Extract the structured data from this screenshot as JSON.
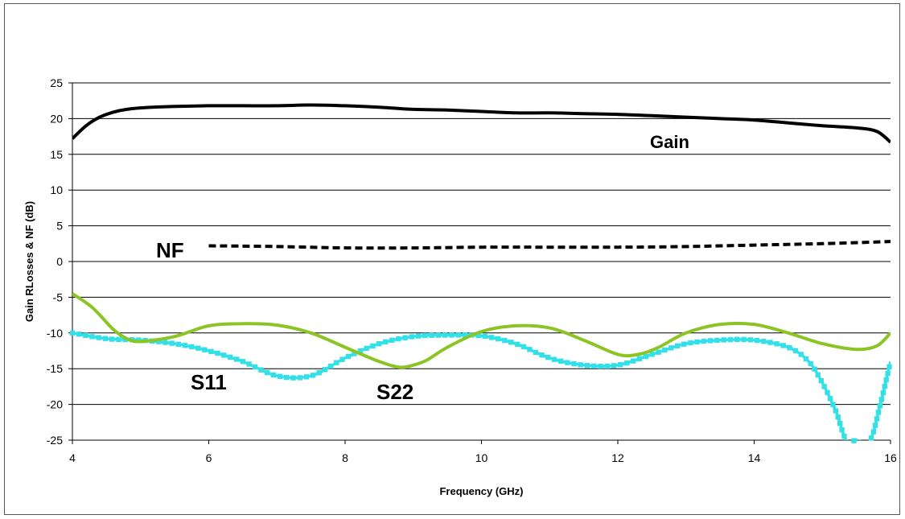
{
  "chart_data": {
    "type": "line",
    "xlabel": "Frequency (GHz)",
    "ylabel": "Gain RLosses & NF (dB)",
    "xlim": [
      4,
      16
    ],
    "ylim": [
      -25,
      25
    ],
    "xticks": [
      4,
      6,
      8,
      10,
      12,
      14,
      16
    ],
    "yticks": [
      25,
      20,
      15,
      10,
      5,
      0,
      -5,
      -10,
      -15,
      -20,
      -25
    ],
    "grid": "horizontal",
    "series": [
      {
        "name": "Gain",
        "color": "#000000",
        "style": "solid",
        "x": [
          4.0,
          4.2,
          4.4,
          4.6,
          4.8,
          5.0,
          5.5,
          6.0,
          6.5,
          7.0,
          7.5,
          8.0,
          8.5,
          9.0,
          9.5,
          10.0,
          10.5,
          11.0,
          11.5,
          12.0,
          12.5,
          13.0,
          13.5,
          14.0,
          14.5,
          15.0,
          15.5,
          15.8,
          16.0
        ],
        "y": [
          17.2,
          19.0,
          20.2,
          20.9,
          21.3,
          21.5,
          21.7,
          21.8,
          21.8,
          21.8,
          21.9,
          21.8,
          21.6,
          21.3,
          21.2,
          21.0,
          20.8,
          20.8,
          20.7,
          20.6,
          20.4,
          20.2,
          20.0,
          19.8,
          19.4,
          19.0,
          18.7,
          18.2,
          16.7
        ]
      },
      {
        "name": "NF",
        "color": "#000000",
        "style": "dashed",
        "x": [
          6.0,
          7.0,
          8.0,
          9.0,
          10.0,
          11.0,
          12.0,
          13.0,
          14.0,
          15.0,
          16.0
        ],
        "y": [
          2.2,
          2.1,
          1.9,
          1.9,
          2.0,
          2.0,
          2.0,
          2.1,
          2.3,
          2.5,
          2.8
        ]
      },
      {
        "name": "S11",
        "color": "#33E0E8",
        "style": "marker",
        "x": [
          4.0,
          4.5,
          5.0,
          5.5,
          6.0,
          6.5,
          7.0,
          7.5,
          8.0,
          8.5,
          9.0,
          9.5,
          10.0,
          10.5,
          11.0,
          11.5,
          12.0,
          12.5,
          13.0,
          13.5,
          14.0,
          14.5,
          14.8,
          15.0,
          15.2,
          15.35,
          15.5,
          15.7,
          15.85,
          16.0
        ],
        "y": [
          -10.0,
          -10.8,
          -11.0,
          -11.5,
          -12.5,
          -14.0,
          -16.0,
          -16.0,
          -13.5,
          -11.5,
          -10.5,
          -10.3,
          -10.4,
          -11.5,
          -13.5,
          -14.5,
          -14.5,
          -13.0,
          -11.5,
          -11.0,
          -11.0,
          -12.0,
          -14.0,
          -17.0,
          -21.0,
          -25.0,
          -25.0,
          -25.0,
          -20.0,
          -14.0
        ]
      },
      {
        "name": "S22",
        "color": "#8BC424",
        "style": "solid",
        "x": [
          4.0,
          4.3,
          4.6,
          4.8,
          5.0,
          5.5,
          6.0,
          6.5,
          7.0,
          7.5,
          8.0,
          8.5,
          8.8,
          9.0,
          9.2,
          9.5,
          10.0,
          10.5,
          11.0,
          11.5,
          12.0,
          12.3,
          12.6,
          13.0,
          13.5,
          14.0,
          14.5,
          15.0,
          15.5,
          15.8,
          16.0
        ],
        "y": [
          -4.5,
          -6.5,
          -9.5,
          -10.8,
          -11.2,
          -10.5,
          -9.0,
          -8.7,
          -8.9,
          -10.0,
          -12.0,
          -14.0,
          -14.8,
          -14.5,
          -13.8,
          -12.0,
          -9.8,
          -9.0,
          -9.3,
          -11.0,
          -13.0,
          -13.0,
          -12.0,
          -10.0,
          -8.8,
          -8.8,
          -10.0,
          -11.5,
          -12.3,
          -11.8,
          -10.0
        ]
      }
    ],
    "annotations": [
      "Gain",
      "NF",
      "S11",
      "S22"
    ]
  }
}
